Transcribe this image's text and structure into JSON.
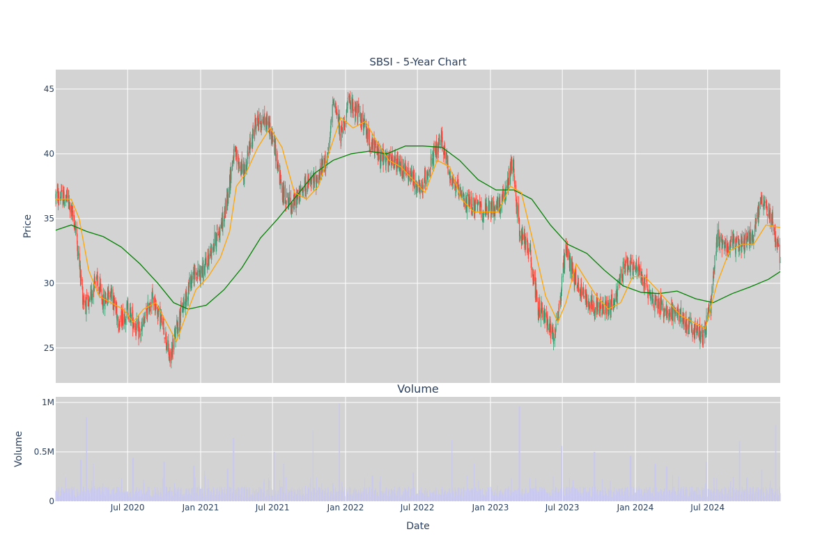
{
  "chart_data": {
    "type": "candlestick",
    "title": "SBSI - 5-Year Chart",
    "price_panel": {
      "ylabel": "Price",
      "ylim": [
        22.3,
        46.5
      ],
      "yticks": [
        25,
        30,
        35,
        40,
        45
      ],
      "candle_colors": {
        "up": "#3D9970",
        "down": "#FF4136"
      },
      "series": [
        {
          "key": "ma_short",
          "color": "#FFA500"
        },
        {
          "key": "ma_long",
          "color": "#008000"
        }
      ],
      "close_trend": [
        [
          "2020-01-02",
          36.8
        ],
        [
          "2020-02-01",
          36.5
        ],
        [
          "2020-02-20",
          34.5
        ],
        [
          "2020-03-10",
          29.0
        ],
        [
          "2020-03-25",
          28.0
        ],
        [
          "2020-04-10",
          30.5
        ],
        [
          "2020-05-01",
          28.5
        ],
        [
          "2020-05-20",
          29.5
        ],
        [
          "2020-06-10",
          27.0
        ],
        [
          "2020-07-01",
          28.0
        ],
        [
          "2020-08-01",
          26.0
        ],
        [
          "2020-09-01",
          29.0
        ],
        [
          "2020-10-01",
          26.5
        ],
        [
          "2020-10-15",
          24.0
        ],
        [
          "2020-11-01",
          26.5
        ],
        [
          "2020-11-20",
          28.5
        ],
        [
          "2020-12-10",
          30.5
        ],
        [
          "2021-01-10",
          31.0
        ],
        [
          "2021-02-01",
          33.0
        ],
        [
          "2021-03-01",
          35.0
        ],
        [
          "2021-03-25",
          40.0
        ],
        [
          "2021-04-20",
          38.5
        ],
        [
          "2021-05-20",
          42.5
        ],
        [
          "2021-06-20",
          42.5
        ],
        [
          "2021-07-10",
          40.0
        ],
        [
          "2021-07-25",
          37.0
        ],
        [
          "2021-08-20",
          36.0
        ],
        [
          "2021-09-20",
          37.5
        ],
        [
          "2021-10-20",
          38.0
        ],
        [
          "2021-11-20",
          40.0
        ],
        [
          "2021-12-01",
          44.5
        ],
        [
          "2021-12-20",
          41.5
        ],
        [
          "2022-01-10",
          44.0
        ],
        [
          "2022-02-05",
          43.0
        ],
        [
          "2022-03-10",
          40.5
        ],
        [
          "2022-04-10",
          39.5
        ],
        [
          "2022-05-20",
          39.0
        ],
        [
          "2022-06-20",
          38.0
        ],
        [
          "2022-07-10",
          37.0
        ],
        [
          "2022-07-25",
          38.5
        ],
        [
          "2022-08-15",
          40.0
        ],
        [
          "2022-09-01",
          41.0
        ],
        [
          "2022-09-20",
          38.5
        ],
        [
          "2022-10-20",
          36.5
        ],
        [
          "2022-11-20",
          36.0
        ],
        [
          "2022-12-20",
          35.5
        ],
        [
          "2023-01-20",
          36.0
        ],
        [
          "2023-02-10",
          37.0
        ],
        [
          "2023-02-25",
          39.5
        ],
        [
          "2023-03-15",
          34.0
        ],
        [
          "2023-04-10",
          32.5
        ],
        [
          "2023-05-01",
          28.0
        ],
        [
          "2023-05-20",
          27.5
        ],
        [
          "2023-06-10",
          26.0
        ],
        [
          "2023-06-25",
          28.5
        ],
        [
          "2023-07-10",
          33.0
        ],
        [
          "2023-07-25",
          31.0
        ],
        [
          "2023-08-15",
          29.5
        ],
        [
          "2023-09-10",
          28.5
        ],
        [
          "2023-10-10",
          28.0
        ],
        [
          "2023-11-10",
          28.5
        ],
        [
          "2023-12-05",
          31.5
        ],
        [
          "2024-01-10",
          31.0
        ],
        [
          "2024-02-10",
          29.0
        ],
        [
          "2024-03-10",
          28.0
        ],
        [
          "2024-04-20",
          27.5
        ],
        [
          "2024-05-20",
          26.5
        ],
        [
          "2024-06-20",
          26.0
        ],
        [
          "2024-07-10",
          28.5
        ],
        [
          "2024-07-25",
          33.5
        ],
        [
          "2024-08-20",
          33.0
        ],
        [
          "2024-09-20",
          33.0
        ],
        [
          "2024-10-20",
          33.5
        ],
        [
          "2024-11-15",
          36.5
        ],
        [
          "2024-12-10",
          35.0
        ],
        [
          "2024-12-31",
          31.8
        ]
      ],
      "ma_short": [
        [
          "2020-01-02",
          36.5
        ],
        [
          "2020-02-10",
          36.5
        ],
        [
          "2020-03-01",
          35.0
        ],
        [
          "2020-03-25",
          31.0
        ],
        [
          "2020-04-20",
          29.0
        ],
        [
          "2020-05-20",
          28.5
        ],
        [
          "2020-06-20",
          28.0
        ],
        [
          "2020-07-15",
          27.0
        ],
        [
          "2020-08-10",
          28.0
        ],
        [
          "2020-09-10",
          28.5
        ],
        [
          "2020-10-15",
          26.5
        ],
        [
          "2020-11-01",
          25.5
        ],
        [
          "2020-11-25",
          27.5
        ],
        [
          "2020-12-20",
          29.5
        ],
        [
          "2021-01-20",
          30.5
        ],
        [
          "2021-02-20",
          32.0
        ],
        [
          "2021-03-15",
          34.0
        ],
        [
          "2021-04-01",
          37.5
        ],
        [
          "2021-04-25",
          38.5
        ],
        [
          "2021-05-25",
          40.5
        ],
        [
          "2021-06-25",
          42.0
        ],
        [
          "2021-07-25",
          40.5
        ],
        [
          "2021-08-25",
          37.0
        ],
        [
          "2021-09-25",
          36.5
        ],
        [
          "2021-10-25",
          37.5
        ],
        [
          "2021-11-25",
          40.5
        ],
        [
          "2021-12-20",
          42.8
        ],
        [
          "2022-01-20",
          42.0
        ],
        [
          "2022-02-20",
          42.5
        ],
        [
          "2022-03-20",
          41.0
        ],
        [
          "2022-04-20",
          39.5
        ],
        [
          "2022-05-20",
          39.0
        ],
        [
          "2022-06-20",
          38.0
        ],
        [
          "2022-07-20",
          37.0
        ],
        [
          "2022-08-20",
          39.5
        ],
        [
          "2022-09-20",
          39.0
        ],
        [
          "2022-10-20",
          36.5
        ],
        [
          "2022-11-20",
          35.5
        ],
        [
          "2022-12-20",
          35.5
        ],
        [
          "2023-01-20",
          35.5
        ],
        [
          "2023-02-20",
          37.5
        ],
        [
          "2023-03-20",
          37.0
        ],
        [
          "2023-04-20",
          33.0
        ],
        [
          "2023-05-20",
          29.0
        ],
        [
          "2023-06-20",
          27.0
        ],
        [
          "2023-07-10",
          28.5
        ],
        [
          "2023-08-05",
          31.5
        ],
        [
          "2023-08-25",
          30.5
        ],
        [
          "2023-09-25",
          29.0
        ],
        [
          "2023-10-25",
          28.0
        ],
        [
          "2023-11-25",
          28.5
        ],
        [
          "2023-12-25",
          30.5
        ],
        [
          "2024-01-25",
          30.5
        ],
        [
          "2024-02-25",
          29.5
        ],
        [
          "2024-03-25",
          28.5
        ],
        [
          "2024-04-25",
          27.5
        ],
        [
          "2024-05-25",
          27.0
        ],
        [
          "2024-06-25",
          26.5
        ],
        [
          "2024-07-25",
          30.0
        ],
        [
          "2024-08-25",
          32.5
        ],
        [
          "2024-09-25",
          33.0
        ],
        [
          "2024-10-25",
          33.0
        ],
        [
          "2024-11-25",
          34.5
        ],
        [
          "2024-12-31",
          34.3
        ]
      ],
      "ma_long": [
        [
          "2020-01-02",
          34.1
        ],
        [
          "2020-02-10",
          34.5
        ],
        [
          "2020-03-20",
          34.0
        ],
        [
          "2020-05-01",
          33.6
        ],
        [
          "2020-06-15",
          32.8
        ],
        [
          "2020-08-01",
          31.5
        ],
        [
          "2020-09-15",
          30.0
        ],
        [
          "2020-10-25",
          28.5
        ],
        [
          "2020-12-01",
          28.0
        ],
        [
          "2021-01-15",
          28.3
        ],
        [
          "2021-03-01",
          29.5
        ],
        [
          "2021-04-15",
          31.2
        ],
        [
          "2021-06-01",
          33.5
        ],
        [
          "2021-07-15",
          35.0
        ],
        [
          "2021-09-01",
          36.8
        ],
        [
          "2021-10-15",
          38.5
        ],
        [
          "2021-12-01",
          39.5
        ],
        [
          "2022-01-15",
          40.0
        ],
        [
          "2022-03-01",
          40.2
        ],
        [
          "2022-04-15",
          40.0
        ],
        [
          "2022-06-01",
          40.6
        ],
        [
          "2022-07-15",
          40.6
        ],
        [
          "2022-09-01",
          40.5
        ],
        [
          "2022-10-15",
          39.5
        ],
        [
          "2022-12-01",
          38.0
        ],
        [
          "2023-01-15",
          37.2
        ],
        [
          "2023-03-01",
          37.2
        ],
        [
          "2023-04-15",
          36.5
        ],
        [
          "2023-06-01",
          34.5
        ],
        [
          "2023-07-15",
          33.0
        ],
        [
          "2023-09-01",
          32.3
        ],
        [
          "2023-10-15",
          31.0
        ],
        [
          "2023-12-01",
          29.8
        ],
        [
          "2024-01-15",
          29.3
        ],
        [
          "2024-03-01",
          29.2
        ],
        [
          "2024-04-15",
          29.4
        ],
        [
          "2024-06-01",
          28.8
        ],
        [
          "2024-07-15",
          28.5
        ],
        [
          "2024-09-01",
          29.2
        ],
        [
          "2024-10-15",
          29.7
        ],
        [
          "2024-12-01",
          30.3
        ],
        [
          "2024-12-31",
          30.9
        ]
      ]
    },
    "volume_panel": {
      "title": "Volume",
      "ylabel": "Volume",
      "ylim": [
        0,
        1000000
      ],
      "yticks": [
        {
          "value": 0,
          "label": "0"
        },
        {
          "value": 500000,
          "label": "0.5M"
        },
        {
          "value": 1000000,
          "label": "1M"
        }
      ],
      "bar_color": "#C8C8F0",
      "base_volume": 100000,
      "spikes": [
        [
          "2020-03-20",
          850000
        ],
        [
          "2020-04-05",
          380000
        ],
        [
          "2020-07-15",
          440000
        ],
        [
          "2020-03-05",
          420000
        ],
        [
          "2020-10-01",
          400000
        ],
        [
          "2020-12-15",
          360000
        ],
        [
          "2021-01-10",
          310000
        ],
        [
          "2021-03-10",
          330000
        ],
        [
          "2021-03-25",
          640000
        ],
        [
          "2021-07-05",
          500000
        ],
        [
          "2021-07-30",
          380000
        ],
        [
          "2021-10-10",
          720000
        ],
        [
          "2021-12-17",
          990000
        ],
        [
          "2022-03-10",
          260000
        ],
        [
          "2022-06-20",
          290000
        ],
        [
          "2022-09-25",
          620000
        ],
        [
          "2022-11-20",
          380000
        ],
        [
          "2023-03-15",
          960000
        ],
        [
          "2023-06-30",
          560000
        ],
        [
          "2023-09-20",
          500000
        ],
        [
          "2023-12-20",
          460000
        ],
        [
          "2024-02-20",
          380000
        ],
        [
          "2024-03-20",
          350000
        ],
        [
          "2024-04-20",
          250000
        ],
        [
          "2024-06-28",
          400000
        ],
        [
          "2024-09-20",
          610000
        ],
        [
          "2024-11-15",
          320000
        ],
        [
          "2024-12-20",
          770000
        ]
      ]
    },
    "x_axis": {
      "label": "Date",
      "range": [
        "2020-01-02",
        "2024-12-31"
      ],
      "ticks": [
        {
          "date": "2020-07-01",
          "label": "Jul 2020"
        },
        {
          "date": "2021-01-01",
          "label": "Jan 2021"
        },
        {
          "date": "2021-07-01",
          "label": "Jul 2021"
        },
        {
          "date": "2022-01-01",
          "label": "Jan 2022"
        },
        {
          "date": "2022-07-01",
          "label": "Jul 2022"
        },
        {
          "date": "2023-01-01",
          "label": "Jan 2023"
        },
        {
          "date": "2023-07-01",
          "label": "Jul 2023"
        },
        {
          "date": "2024-01-01",
          "label": "Jan 2024"
        },
        {
          "date": "2024-07-01",
          "label": "Jul 2024"
        }
      ]
    },
    "grid": true,
    "plot_background": "#D3D3D3"
  }
}
